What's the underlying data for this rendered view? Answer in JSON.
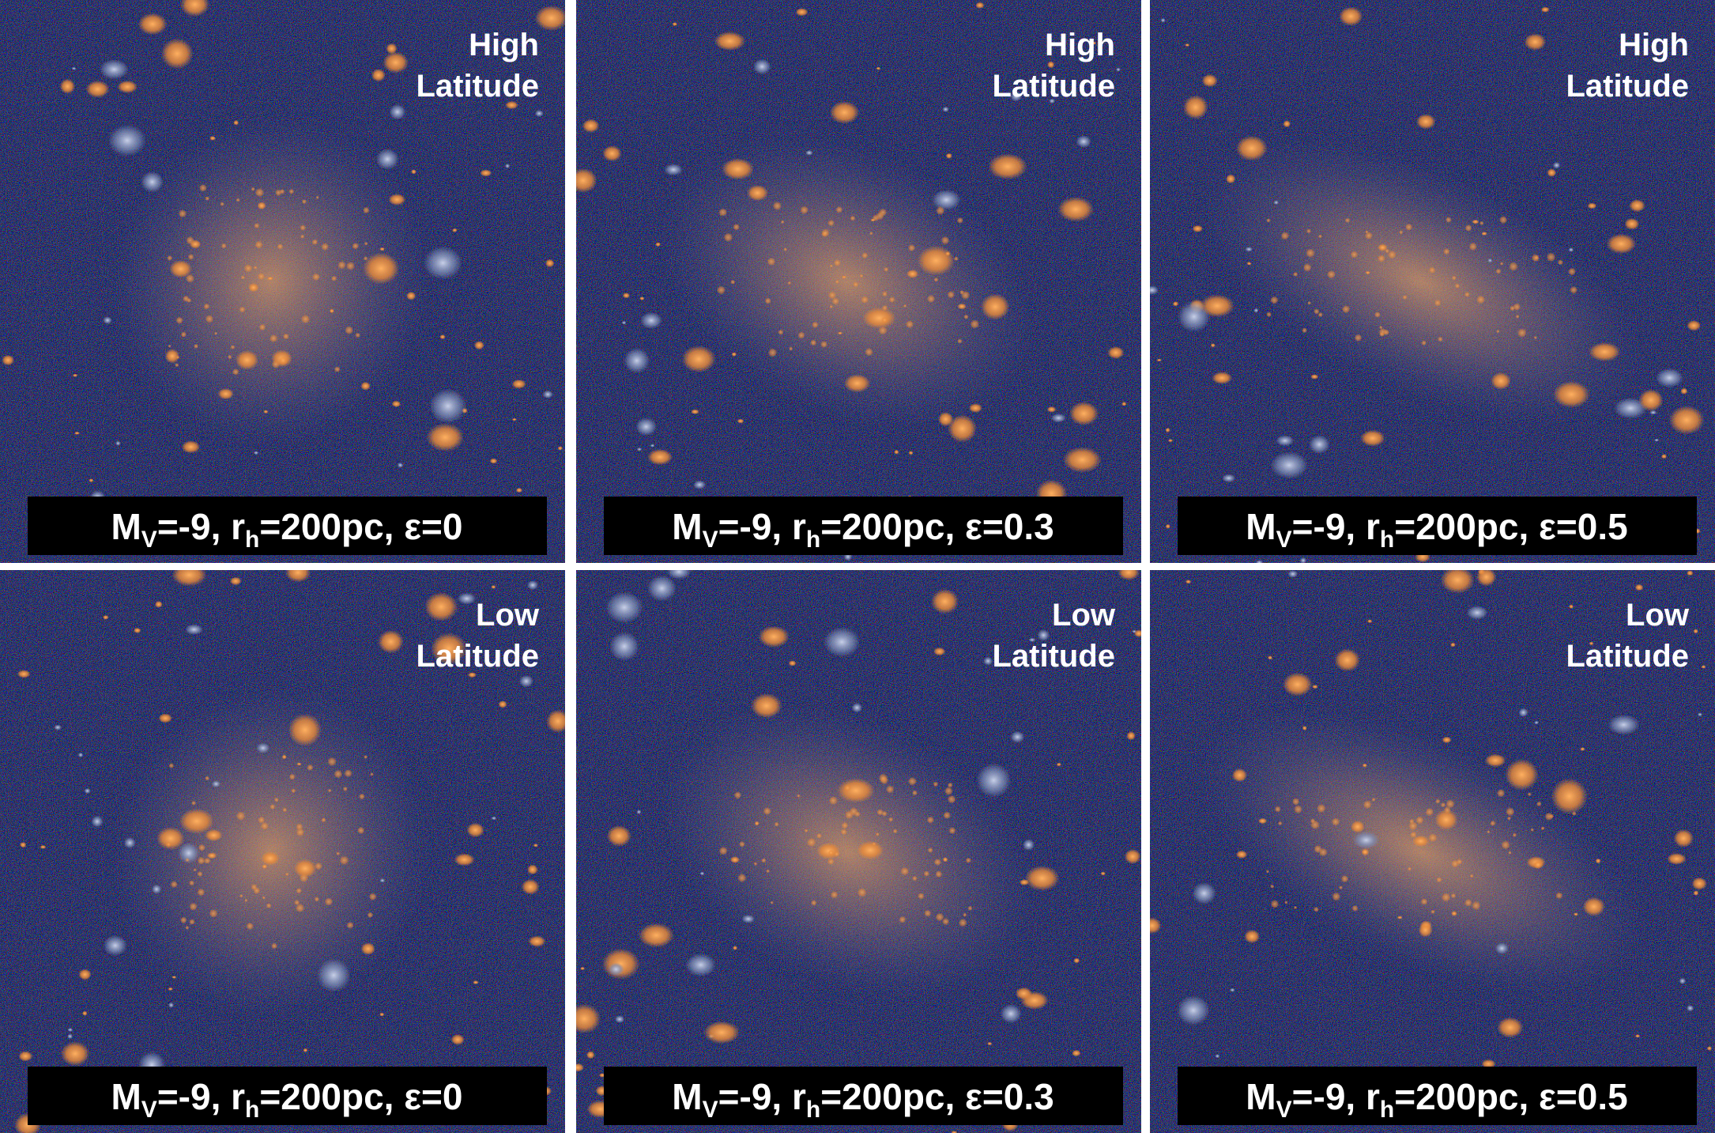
{
  "panels": [
    {
      "latitude": [
        "High",
        "Latitude"
      ],
      "caption": {
        "m": "M",
        "m_sub": "V",
        "mid": "=-9, r",
        "r_sub": "h",
        "rest": "=200pc, ε=0"
      }
    },
    {
      "latitude": [
        "High",
        "Latitude"
      ],
      "caption": {
        "m": "M",
        "m_sub": "V",
        "mid": "=-9, r",
        "r_sub": "h",
        "rest": "=200pc, ε=0.3"
      }
    },
    {
      "latitude": [
        "High",
        "Latitude"
      ],
      "caption": {
        "m": "M",
        "m_sub": "V",
        "mid": "=-9, r",
        "r_sub": "h",
        "rest": "=200pc, ε=0.5"
      }
    },
    {
      "latitude": [
        "Low",
        "Latitude"
      ],
      "caption": {
        "m": "M",
        "m_sub": "V",
        "mid": "=-9, r",
        "r_sub": "h",
        "rest": "=200pc, ε=0"
      }
    },
    {
      "latitude": [
        "Low",
        "Latitude"
      ],
      "caption": {
        "m": "M",
        "m_sub": "V",
        "mid": "=-9, r",
        "r_sub": "h",
        "rest": "=200pc, ε=0.3"
      }
    },
    {
      "latitude": [
        "Low",
        "Latitude"
      ],
      "caption": {
        "m": "M",
        "m_sub": "V",
        "mid": "=-9, r",
        "r_sub": "h",
        "rest": "=200pc, ε=0.5"
      }
    }
  ]
}
